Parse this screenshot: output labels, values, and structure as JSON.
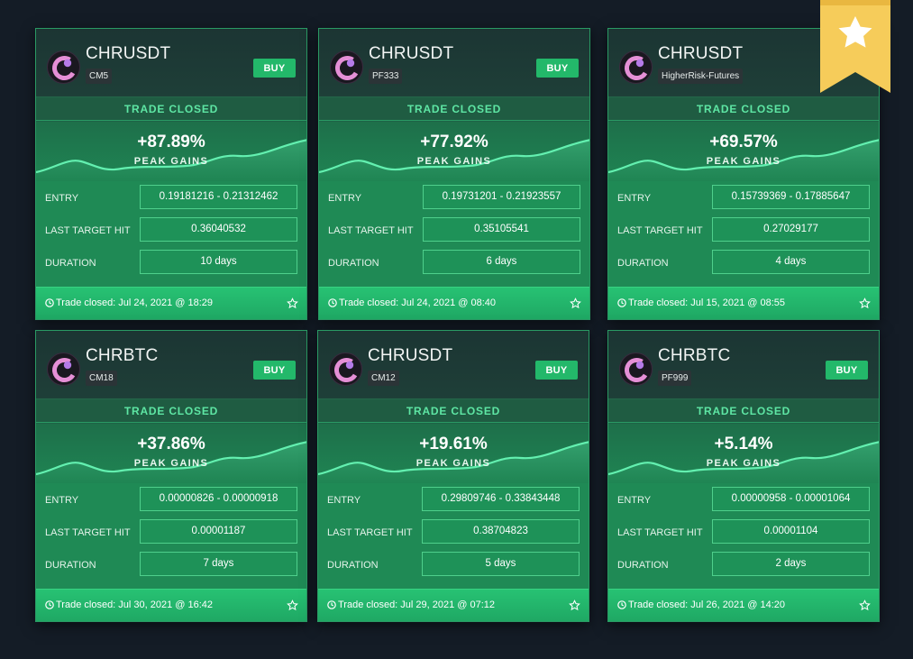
{
  "cards": [
    {
      "pair": "CHRUSDT",
      "tag": "CM5",
      "buy": "BUY",
      "status": "TRADE CLOSED",
      "gain": "+87.89%",
      "gain_label": "PEAK GAINS",
      "rows": [
        {
          "label": "ENTRY",
          "value": "0.19181216 - 0.21312462"
        },
        {
          "label": "LAST TARGET HIT",
          "value": "0.36040532"
        },
        {
          "label": "DURATION",
          "value": "10 days"
        }
      ],
      "closed": "Trade closed: Jul 24, 2021 @ 18:29"
    },
    {
      "pair": "CHRUSDT",
      "tag": "PF333",
      "buy": "BUY",
      "status": "TRADE CLOSED",
      "gain": "+77.92%",
      "gain_label": "PEAK GAINS",
      "rows": [
        {
          "label": "ENTRY",
          "value": "0.19731201 - 0.21923557"
        },
        {
          "label": "LAST TARGET HIT",
          "value": "0.35105541"
        },
        {
          "label": "DURATION",
          "value": "6 days"
        }
      ],
      "closed": "Trade closed: Jul 24, 2021 @ 08:40"
    },
    {
      "pair": "CHRUSDT",
      "tag": "HigherRisk-Futures",
      "buy": "",
      "status": "TRADE CLOSED",
      "gain": "+69.57%",
      "gain_label": "PEAK GAINS",
      "rows": [
        {
          "label": "ENTRY",
          "value": "0.15739369 - 0.17885647"
        },
        {
          "label": "LAST TARGET HIT",
          "value": "0.27029177"
        },
        {
          "label": "DURATION",
          "value": "4 days"
        }
      ],
      "closed": "Trade closed: Jul 15, 2021 @ 08:55"
    },
    {
      "pair": "CHRBTC",
      "tag": "CM18",
      "buy": "BUY",
      "status": "TRADE CLOSED",
      "gain": "+37.86%",
      "gain_label": "PEAK GAINS",
      "rows": [
        {
          "label": "ENTRY",
          "value": "0.00000826 - 0.00000918"
        },
        {
          "label": "LAST TARGET HIT",
          "value": "0.00001187"
        },
        {
          "label": "DURATION",
          "value": "7 days"
        }
      ],
      "closed": "Trade closed: Jul 30, 2021 @ 16:42"
    },
    {
      "pair": "CHRUSDT",
      "tag": "CM12",
      "buy": "BUY",
      "status": "TRADE CLOSED",
      "gain": "+19.61%",
      "gain_label": "PEAK GAINS",
      "rows": [
        {
          "label": "ENTRY",
          "value": "0.29809746 - 0.33843448"
        },
        {
          "label": "LAST TARGET HIT",
          "value": "0.38704823"
        },
        {
          "label": "DURATION",
          "value": "5 days"
        }
      ],
      "closed": "Trade closed: Jul 29, 2021 @ 07:12"
    },
    {
      "pair": "CHRBTC",
      "tag": "PF999",
      "buy": "BUY",
      "status": "TRADE CLOSED",
      "gain": "+5.14%",
      "gain_label": "PEAK GAINS",
      "rows": [
        {
          "label": "ENTRY",
          "value": "0.00000958 - 0.00001064"
        },
        {
          "label": "LAST TARGET HIT",
          "value": "0.00001104"
        },
        {
          "label": "DURATION",
          "value": "2 days"
        }
      ],
      "closed": "Trade closed: Jul 26, 2021 @ 14:20"
    }
  ],
  "icons": {
    "logo": "chromia-logo-icon",
    "clock": "clock-icon",
    "star": "star-outline-icon",
    "ribbon": "featured-star-ribbon-icon"
  },
  "colors": {
    "background": "#141c26",
    "accent": "#23b86a",
    "status_text": "#5ee6a4",
    "ribbon": "#f6cc5a"
  }
}
